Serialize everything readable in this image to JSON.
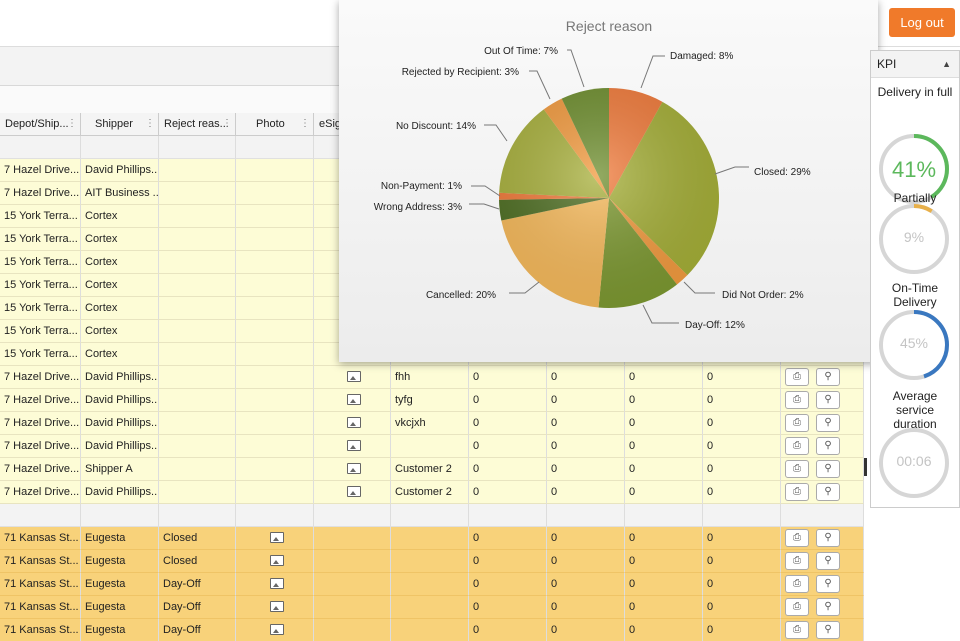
{
  "header": {
    "logout_label": "Log out"
  },
  "grid": {
    "columns": [
      "Depot/Ship...",
      "Shipper",
      "Reject reas...",
      "Photo",
      "eSig"
    ],
    "yellow_rows": [
      {
        "depot": "7 Hazel Drive...",
        "shipper": "David Phillips...",
        "reject": "",
        "photo": false,
        "esig": false,
        "consignee": "",
        "v1": "",
        "v2": "",
        "v3": "",
        "v4": "",
        "actions": false
      },
      {
        "depot": "7 Hazel Drive...",
        "shipper": "AIT Business ...",
        "reject": "",
        "photo": false,
        "esig": false,
        "consignee": "",
        "v1": "",
        "v2": "",
        "v3": "",
        "v4": "",
        "actions": false
      },
      {
        "depot": "15 York Terra...",
        "shipper": "Cortex",
        "reject": "",
        "photo": false,
        "esig": false,
        "consignee": "",
        "v1": "",
        "v2": "",
        "v3": "",
        "v4": "",
        "actions": false
      },
      {
        "depot": "15 York Terra...",
        "shipper": "Cortex",
        "reject": "",
        "photo": false,
        "esig": false,
        "consignee": "",
        "v1": "",
        "v2": "",
        "v3": "",
        "v4": "",
        "actions": false
      },
      {
        "depot": "15 York Terra...",
        "shipper": "Cortex",
        "reject": "",
        "photo": false,
        "esig": false,
        "consignee": "",
        "v1": "",
        "v2": "",
        "v3": "",
        "v4": "",
        "actions": false
      },
      {
        "depot": "15 York Terra...",
        "shipper": "Cortex",
        "reject": "",
        "photo": false,
        "esig": false,
        "consignee": "",
        "v1": "",
        "v2": "",
        "v3": "",
        "v4": "",
        "actions": false
      },
      {
        "depot": "15 York Terra...",
        "shipper": "Cortex",
        "reject": "",
        "photo": false,
        "esig": false,
        "consignee": "",
        "v1": "",
        "v2": "",
        "v3": "",
        "v4": "",
        "actions": false
      },
      {
        "depot": "15 York Terra...",
        "shipper": "Cortex",
        "reject": "",
        "photo": false,
        "esig": false,
        "consignee": "",
        "v1": "",
        "v2": "",
        "v3": "",
        "v4": "",
        "actions": false
      },
      {
        "depot": "15 York Terra...",
        "shipper": "Cortex",
        "reject": "",
        "photo": false,
        "esig": false,
        "consignee": "",
        "v1": "",
        "v2": "",
        "v3": "",
        "v4": "",
        "actions": false
      },
      {
        "depot": "7 Hazel Drive...",
        "shipper": "David Phillips...",
        "reject": "",
        "photo": false,
        "esig": true,
        "consignee": "fhh",
        "v1": "0",
        "v2": "0",
        "v3": "0",
        "v4": "0",
        "actions": true
      },
      {
        "depot": "7 Hazel Drive...",
        "shipper": "David Phillips...",
        "reject": "",
        "photo": false,
        "esig": true,
        "consignee": "tyfg",
        "v1": "0",
        "v2": "0",
        "v3": "0",
        "v4": "0",
        "actions": true
      },
      {
        "depot": "7 Hazel Drive...",
        "shipper": "David Phillips...",
        "reject": "",
        "photo": false,
        "esig": true,
        "consignee": "vkcjxh",
        "v1": "0",
        "v2": "0",
        "v3": "0",
        "v4": "0",
        "actions": true
      },
      {
        "depot": "7 Hazel Drive...",
        "shipper": "David Phillips...",
        "reject": "",
        "photo": false,
        "esig": true,
        "consignee": "",
        "v1": "0",
        "v2": "0",
        "v3": "0",
        "v4": "0",
        "actions": true
      },
      {
        "depot": "7 Hazel Drive...",
        "shipper": "Shipper A",
        "reject": "",
        "photo": false,
        "esig": true,
        "consignee": "Customer 2",
        "v1": "0",
        "v2": "0",
        "v3": "0",
        "v4": "0",
        "actions": true
      },
      {
        "depot": "7 Hazel Drive...",
        "shipper": "David Phillips...",
        "reject": "",
        "photo": false,
        "esig": true,
        "consignee": "Customer 2",
        "v1": "0",
        "v2": "0",
        "v3": "0",
        "v4": "0",
        "actions": true
      }
    ],
    "orange_rows": [
      {
        "depot": "71 Kansas St...",
        "shipper": "Eugesta",
        "reject": "Closed",
        "photo": true,
        "esig": false,
        "consignee": "",
        "v1": "0",
        "v2": "0",
        "v3": "0",
        "v4": "0",
        "actions": true
      },
      {
        "depot": "71 Kansas St...",
        "shipper": "Eugesta",
        "reject": "Closed",
        "photo": true,
        "esig": false,
        "consignee": "",
        "v1": "0",
        "v2": "0",
        "v3": "0",
        "v4": "0",
        "actions": true
      },
      {
        "depot": "71 Kansas St...",
        "shipper": "Eugesta",
        "reject": "Day-Off",
        "photo": true,
        "esig": false,
        "consignee": "",
        "v1": "0",
        "v2": "0",
        "v3": "0",
        "v4": "0",
        "actions": true
      },
      {
        "depot": "71 Kansas St...",
        "shipper": "Eugesta",
        "reject": "Day-Off",
        "photo": true,
        "esig": false,
        "consignee": "",
        "v1": "0",
        "v2": "0",
        "v3": "0",
        "v4": "0",
        "actions": true
      },
      {
        "depot": "71 Kansas St...",
        "shipper": "Eugesta",
        "reject": "Day-Off",
        "photo": true,
        "esig": false,
        "consignee": "",
        "v1": "0",
        "v2": "0",
        "v3": "0",
        "v4": "0",
        "actions": true
      }
    ]
  },
  "chart_data": {
    "type": "pie",
    "title": "Reject reason",
    "slices": [
      {
        "label": "Damaged: 8%",
        "name": "Damaged",
        "value": 8,
        "color": "#f07a3a"
      },
      {
        "label": "Closed: 29%",
        "name": "Closed",
        "value": 29,
        "color": "#a4ae36"
      },
      {
        "label": "Did Not Order: 2%",
        "name": "Did Not Order",
        "value": 2,
        "color": "#f29a3e"
      },
      {
        "label": "Day-Off: 12%",
        "name": "Day-Off",
        "value": 12,
        "color": "#7c9830"
      },
      {
        "label": "Cancelled: 20%",
        "name": "Cancelled",
        "value": 20,
        "color": "#f6b95a"
      },
      {
        "label": "Wrong Address: 3%",
        "name": "Wrong Address",
        "value": 3,
        "color": "#4e6e22"
      },
      {
        "label": "Non-Payment: 1%",
        "name": "Non-Payment",
        "value": 1,
        "color": "#f07a3a"
      },
      {
        "label": "No Discount: 14%",
        "name": "No Discount",
        "value": 14,
        "color": "#a8b03c"
      },
      {
        "label": "Rejected by Recipient: 3%",
        "name": "Rejected by Recipient",
        "value": 3,
        "color": "#f29a3e"
      },
      {
        "label": "Out Of Time: 7%",
        "name": "Out Of Time",
        "value": 7,
        "color": "#6e8e2e"
      }
    ]
  },
  "kpi": {
    "title": "KPI",
    "items": [
      {
        "label": "Delivery in full",
        "value": "41%",
        "fraction": 0.41,
        "color": "#5cb85c",
        "active": true
      },
      {
        "label": "Partially",
        "value": "9%",
        "fraction": 0.09,
        "color": "#e8b04a",
        "active": false
      },
      {
        "label": "On-Time Delivery",
        "value": "45%",
        "fraction": 0.45,
        "color": "#3a78c0",
        "active": false
      },
      {
        "label": "Average service duration",
        "value": "00:06",
        "fraction": 0,
        "color": "#cccccc",
        "active": false
      }
    ]
  }
}
